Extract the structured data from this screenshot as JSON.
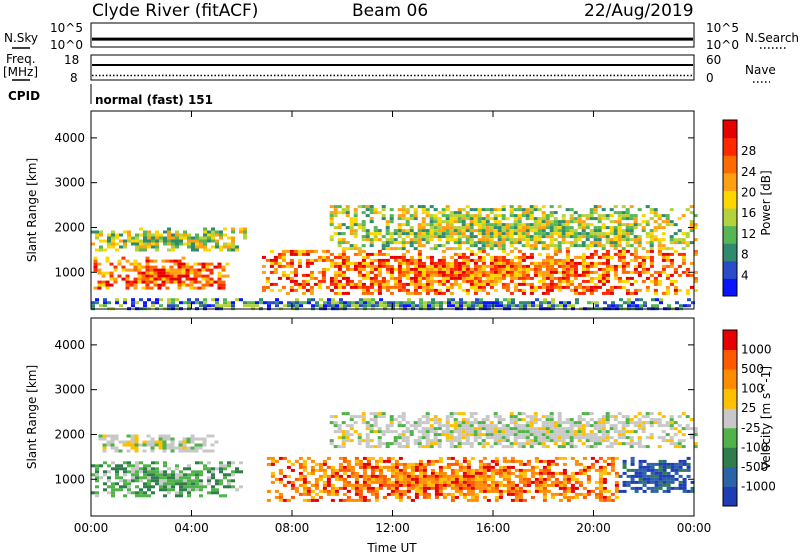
{
  "header": {
    "station": "Clyde River (fitACF)",
    "beam": "Beam 06",
    "date": "22/Aug/2019"
  },
  "noise_panel": {
    "left_label": "N.Sky",
    "right_label": "N.Search",
    "left_ticks": [
      "10^5",
      "10^0"
    ],
    "right_ticks": [
      "10^5",
      "10^0"
    ],
    "nsky_level": 0.33
  },
  "freq_panel": {
    "left_label_line1": "Freq.",
    "left_label_line2": "[MHz]",
    "right_label": "Nave",
    "left_ticks": [
      "18",
      "8"
    ],
    "right_ticks": [
      "60",
      "0"
    ],
    "freq_level": 0.6,
    "nave_level": 0.18
  },
  "cpid_panel": {
    "label": "CPID",
    "text": "normal (fast) 151"
  },
  "chart_data": [
    {
      "type": "heatmap",
      "quantity": "Power",
      "ylabel": "Slant Range [km]",
      "xlabel": "Time UT",
      "xlim": [
        0,
        24
      ],
      "ylim": [
        180,
        4600
      ],
      "yticks": [
        1000,
        2000,
        3000,
        4000
      ],
      "xticks": [
        "00:00",
        "04:00",
        "08:00",
        "12:00",
        "16:00",
        "20:00",
        "00:00"
      ],
      "colorbar": {
        "label": "Power [dB]",
        "ticks": [
          "4",
          "8",
          "12",
          "16",
          "20",
          "24",
          "28"
        ],
        "colors": [
          "#0a14ff",
          "#2a4cc8",
          "#2f8a6e",
          "#56b656",
          "#b4d23c",
          "#ffd700",
          "#ffa014",
          "#ff6a00",
          "#ff2800",
          "#e60000"
        ]
      },
      "features": [
        {
          "t0": 0.0,
          "t1": 6.2,
          "r0": 1500,
          "r1": 2000,
          "level": "mid",
          "description": "ionospheric"
        },
        {
          "t0": 0.1,
          "t1": 5.5,
          "r0": 650,
          "r1": 1350,
          "level": "high",
          "description": "ionospheric"
        },
        {
          "t0": 6.8,
          "t1": 24.0,
          "r0": 500,
          "r1": 1500,
          "level": "high",
          "description": "ionospheric"
        },
        {
          "t0": 9.5,
          "t1": 24.0,
          "r0": 1500,
          "r1": 2500,
          "level": "mid",
          "description": "ionospheric"
        },
        {
          "t0": 0.0,
          "t1": 24.0,
          "r0": 180,
          "r1": 420,
          "level": "low",
          "description": "ground-near"
        }
      ]
    },
    {
      "type": "heatmap",
      "quantity": "Velocity",
      "ylabel": "Slant Range [km]",
      "xlabel": "Time UT",
      "xlim": [
        0,
        24
      ],
      "ylim": [
        180,
        4600
      ],
      "yticks": [
        1000,
        2000,
        3000,
        4000
      ],
      "xticks": [
        "00:00",
        "04:00",
        "08:00",
        "12:00",
        "16:00",
        "20:00",
        "00:00"
      ],
      "colorbar": {
        "label": "Velocity [m s^-1]",
        "ticks": [
          "1000",
          "500",
          "100",
          "25",
          "-25",
          "-100",
          "-500",
          "-1000"
        ],
        "colors": [
          "#1e3cb4",
          "#2b62a8",
          "#2e7d4a",
          "#4fb34a",
          "#c8c8c8",
          "#ffc000",
          "#ff8c00",
          "#ff5a00",
          "#e60000"
        ]
      },
      "features": [
        {
          "t0": 0.0,
          "t1": 6.0,
          "r0": 650,
          "r1": 1400,
          "level": "green",
          "description": "ionospheric"
        },
        {
          "t0": 0.3,
          "t1": 5.0,
          "r0": 1600,
          "r1": 2000,
          "level": "gray",
          "description": "ionospheric"
        },
        {
          "t0": 7.0,
          "t1": 21.0,
          "r0": 500,
          "r1": 1500,
          "level": "orange",
          "description": "ionospheric"
        },
        {
          "t0": 9.5,
          "t1": 24.0,
          "r0": 1700,
          "r1": 2500,
          "level": "gray",
          "description": "ionospheric"
        },
        {
          "t0": 21.0,
          "t1": 24.0,
          "r0": 700,
          "r1": 1500,
          "level": "blue",
          "description": "ionospheric"
        }
      ]
    }
  ]
}
